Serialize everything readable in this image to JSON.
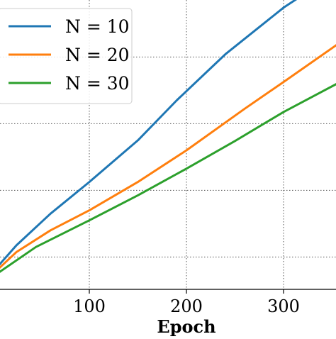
{
  "chart_data": {
    "type": "line",
    "xlabel": "Epoch",
    "ylabel": "",
    "title": "",
    "xlim": [
      -10,
      355
    ],
    "ylim": [
      0,
      100
    ],
    "xticks": [
      100,
      200,
      300
    ],
    "xtick_labels": [
      "100",
      "200",
      "300"
    ],
    "yticks": [
      8,
      28,
      48,
      68,
      88
    ],
    "grid": true,
    "grid_style": "dotted",
    "legend_position": "top-left",
    "series": [
      {
        "name": "N = 10",
        "color": "#1f77b4",
        "x": [
          -10,
          25,
          60,
          100,
          150,
          190,
          240,
          300,
          355
        ],
        "y": [
          0,
          11.5,
          21,
          30.5,
          43,
          55,
          68.8,
          82.8,
          93.4
        ]
      },
      {
        "name": "N = 20",
        "color": "#ff7f0e",
        "x": [
          -10,
          25,
          60,
          100,
          150,
          200,
          260,
          300,
          355
        ],
        "y": [
          0,
          9.5,
          16,
          22,
          30.5,
          40,
          52.5,
          60.5,
          71.7
        ]
      },
      {
        "name": "N = 30",
        "color": "#2ca02c",
        "x": [
          -10,
          45,
          100,
          150,
          200,
          250,
          300,
          355
        ],
        "y": [
          0,
          11,
          19,
          26.5,
          34.5,
          42.8,
          51.5,
          60
        ]
      }
    ]
  }
}
